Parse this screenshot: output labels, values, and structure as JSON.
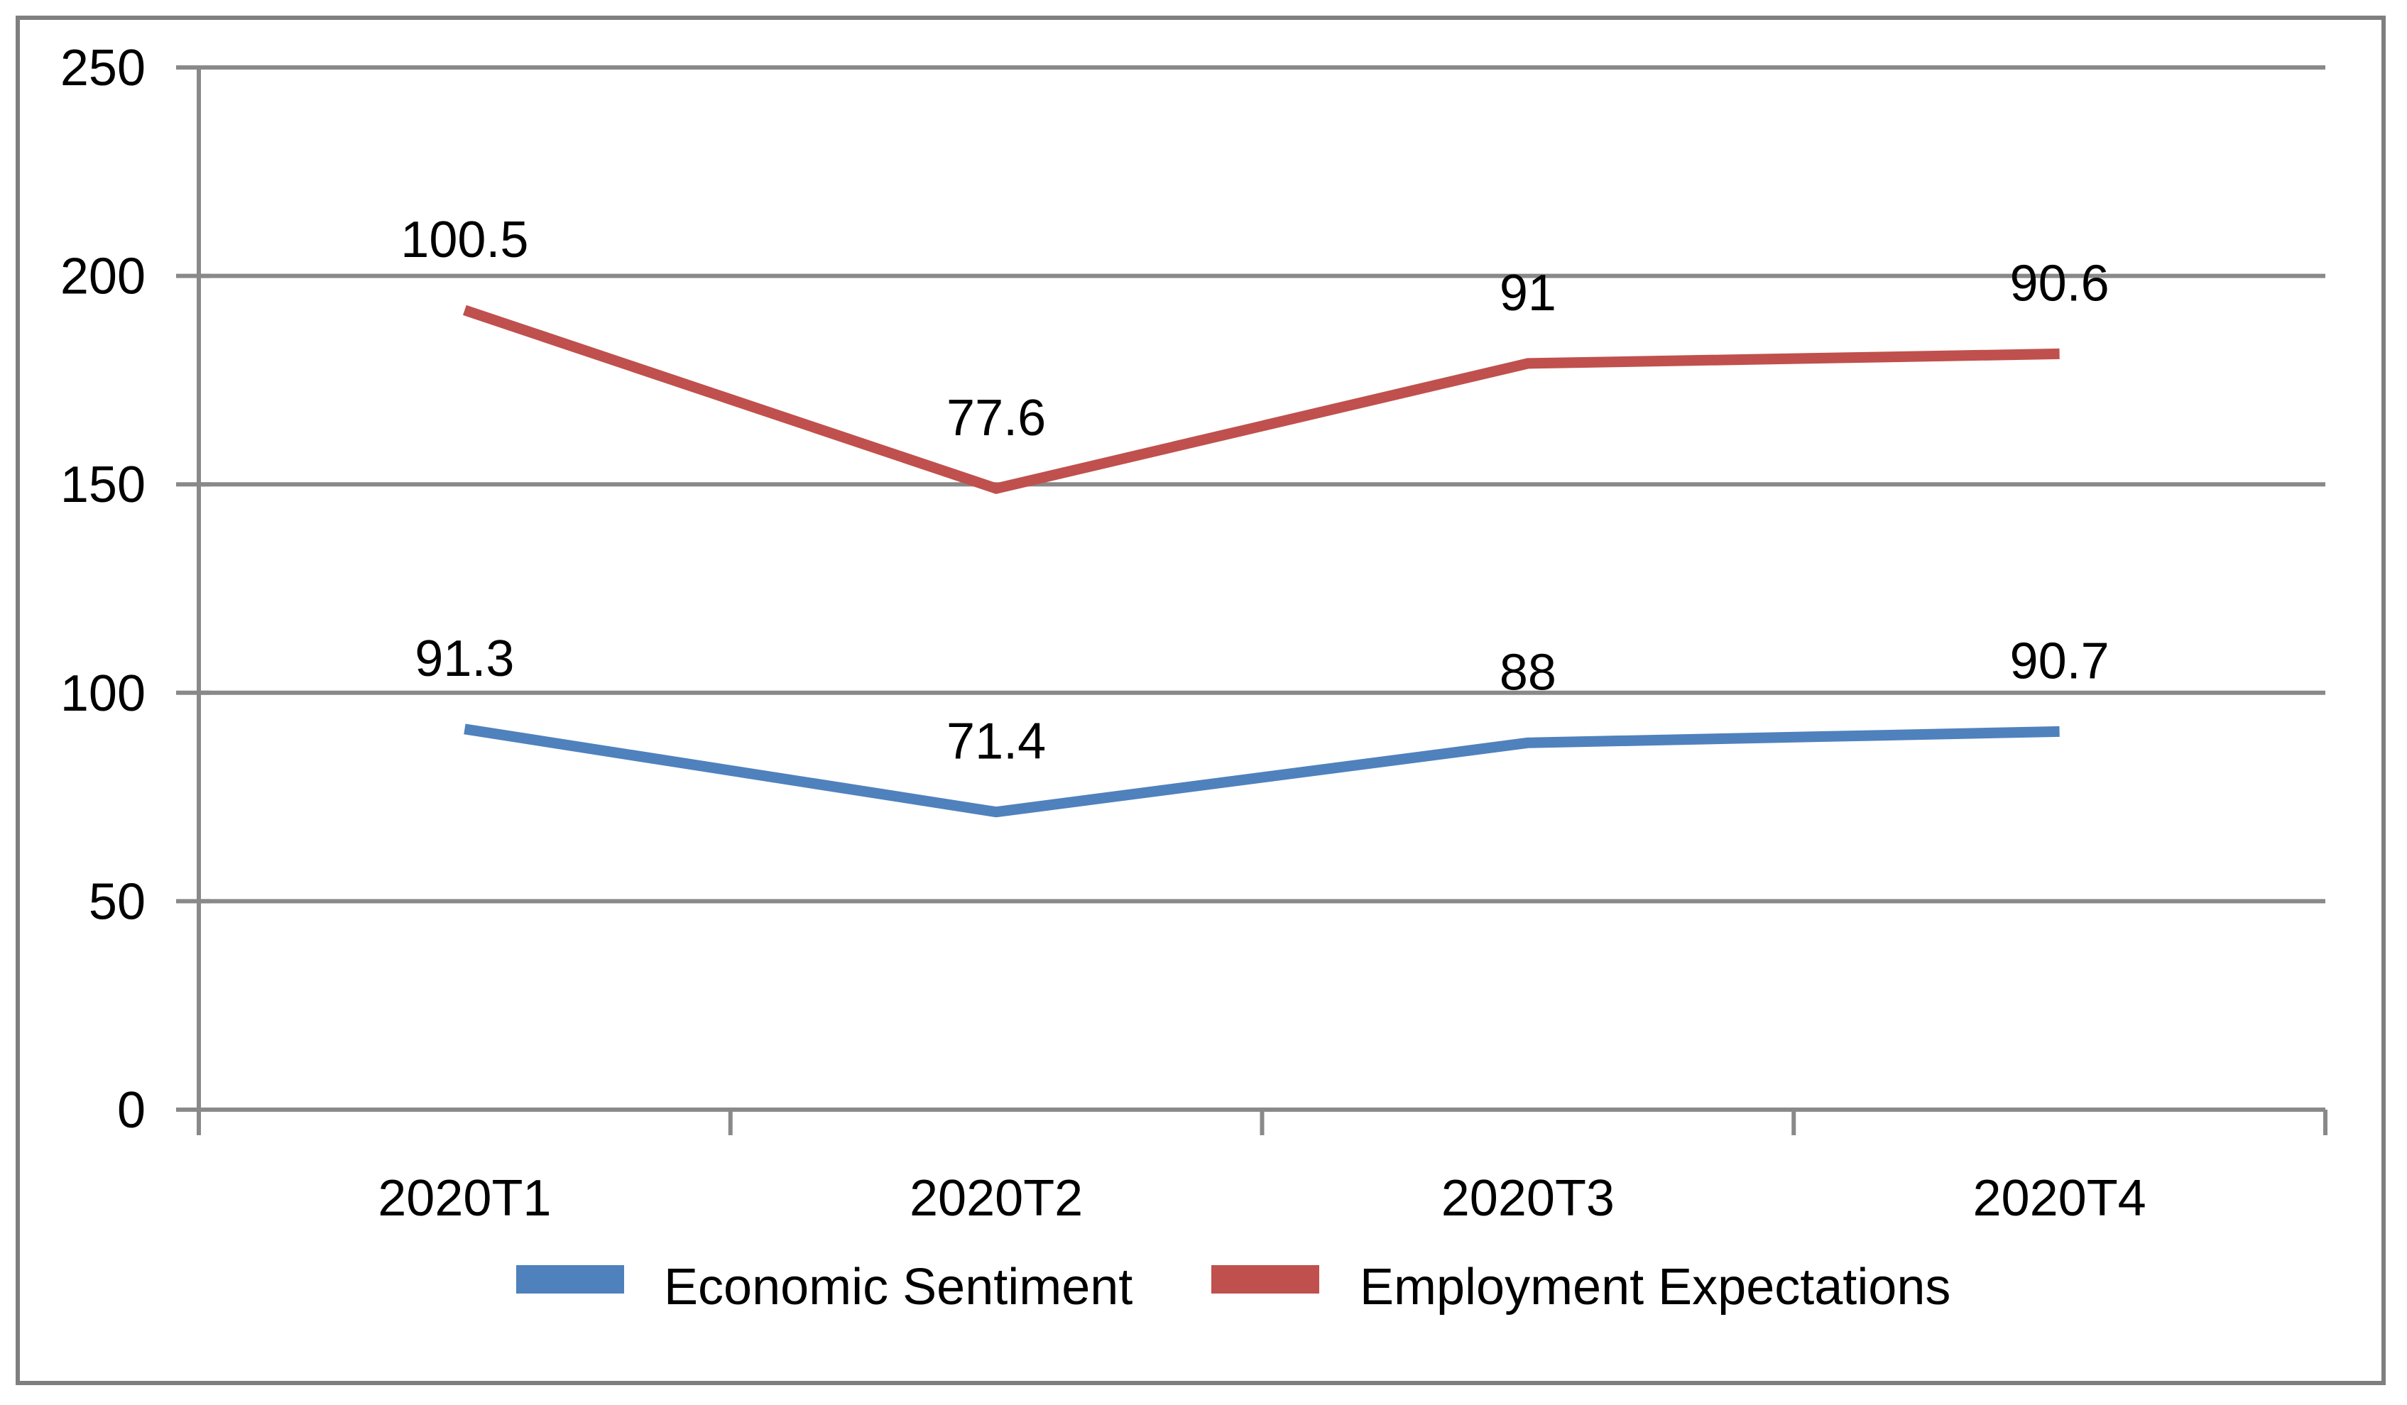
{
  "chart_data": {
    "type": "line",
    "stacked": true,
    "title": "",
    "categories": [
      "2020T1",
      "2020T2",
      "2020T3",
      "2020T4"
    ],
    "series": [
      {
        "name": "Economic Sentiment",
        "color": "#4F81BD",
        "values": [
          91.3,
          71.4,
          88,
          90.7
        ],
        "labels": [
          "91.3",
          "71.4",
          "88",
          "90.7"
        ]
      },
      {
        "name": "Employment Expectations",
        "color": "#C0504D",
        "values": [
          100.5,
          77.6,
          91,
          90.6
        ],
        "labels": [
          "100.5",
          "77.6",
          "91",
          "90.6"
        ]
      }
    ],
    "y_axis": {
      "min": 0,
      "max": 250,
      "step": 50,
      "tick_labels": [
        "0",
        "50",
        "100",
        "150",
        "200",
        "250"
      ]
    },
    "x_axis": {
      "tick_labels": [
        "2020T1",
        "2020T2",
        "2020T3",
        "2020T4"
      ]
    },
    "gridlines": true,
    "legend_position": "bottom",
    "style": {
      "background": "#FFFFFF",
      "border_color": "#7F7F7F",
      "grid_color": "#898989",
      "axis_color": "#898989",
      "text_color": "#000000"
    }
  }
}
